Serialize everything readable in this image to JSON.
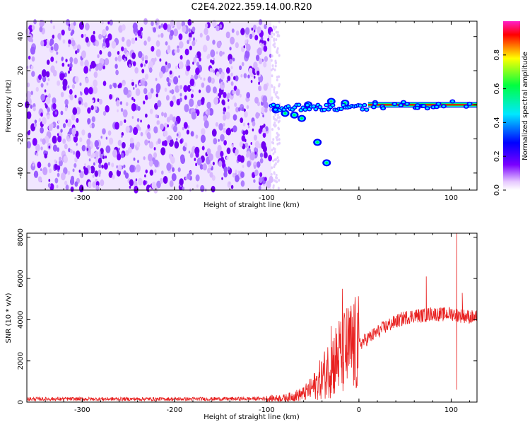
{
  "title": "C2E4.2022.359.14.00.R20",
  "chart_data": [
    {
      "type": "heatmap",
      "xlabel": "Height of straight line (km)",
      "ylabel": "Frequency (Hz)",
      "xlim": [
        -360,
        128
      ],
      "ylim": [
        -50,
        49
      ],
      "xticks": [
        "-300",
        "-200",
        "-100",
        "0",
        "100"
      ],
      "yticks": [
        "-40",
        "-20",
        "0",
        "20",
        "40"
      ],
      "colorbar": {
        "label": "Normalized spectral amplitude",
        "range": [
          0,
          1
        ],
        "ticks": [
          "0.0",
          "0.2",
          "0.4",
          "0.6",
          "0.8"
        ],
        "colors": [
          "#ffffff",
          "#e6c8ff",
          "#7a00ff",
          "#0000ff",
          "#00e8ff",
          "#00ff40",
          "#ffff00",
          "#ff0000",
          "#ff1ec8"
        ]
      },
      "features": {
        "noise_region_x": [
          -360,
          -95
        ],
        "noise_region_color": "#7a00ff",
        "main_line_frequency": 0,
        "main_line_x": [
          10,
          128
        ],
        "main_line_color": "#ff0000",
        "tail_points": [
          {
            "x": -90,
            "y": -3
          },
          {
            "x": -80,
            "y": -5
          },
          {
            "x": -70,
            "y": -6
          },
          {
            "x": -62,
            "y": -8
          },
          {
            "x": -55,
            "y": 0
          },
          {
            "x": -45,
            "y": -22
          },
          {
            "x": -35,
            "y": -34
          },
          {
            "x": -30,
            "y": 2
          },
          {
            "x": -15,
            "y": 1
          }
        ]
      }
    },
    {
      "type": "line",
      "xlabel": "Height of straight line (km)",
      "ylabel": "SNR (10 * v/v)",
      "xlim": [
        -360,
        128
      ],
      "ylim": [
        0,
        8200
      ],
      "xticks": [
        "-300",
        "-200",
        "-100",
        "0",
        "100"
      ],
      "yticks": [
        "0",
        "2000",
        "4000",
        "6000",
        "8000"
      ],
      "series": [
        {
          "color": "#e8201f",
          "x": [
            -360,
            -300,
            -200,
            -120,
            -100,
            -80,
            -60,
            -50,
            -40,
            -30,
            -20,
            -10,
            0,
            10,
            20,
            30,
            40,
            50,
            60,
            70,
            80,
            90,
            100,
            110,
            120,
            128
          ],
          "y": [
            150,
            150,
            150,
            160,
            170,
            200,
            400,
            700,
            1200,
            1800,
            2300,
            2600,
            2800,
            3100,
            3400,
            3700,
            3900,
            4100,
            4200,
            4200,
            4300,
            4250,
            4300,
            4200,
            4150,
            4100
          ],
          "spikes": [
            {
              "x": -30,
              "y": 3700
            },
            {
              "x": -18,
              "y": 5500
            },
            {
              "x": 73,
              "y": 6100
            },
            {
              "x": 106,
              "y": 8200
            },
            {
              "x": 106,
              "y": 600
            },
            {
              "x": 112,
              "y": 5300
            }
          ]
        }
      ]
    }
  ]
}
